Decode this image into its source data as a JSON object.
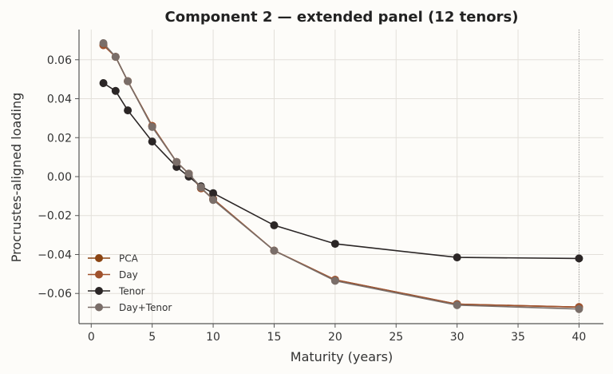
{
  "chart_data": {
    "type": "line",
    "title": "Component 2 — extended panel (12 tenors)",
    "xlabel": "Maturity (years)",
    "ylabel": "Procrustes-aligned loading",
    "xlim": [
      -1,
      42
    ],
    "ylim": [
      -0.0755,
      0.0755
    ],
    "x_ticks": [
      0,
      5,
      10,
      15,
      20,
      25,
      30,
      35,
      40
    ],
    "x_tick_labels": [
      "0",
      "5",
      "10",
      "15",
      "20",
      "25",
      "30",
      "35",
      "40"
    ],
    "y_ticks": [
      -0.06,
      -0.04,
      -0.02,
      0.0,
      0.02,
      0.04,
      0.06
    ],
    "y_tick_labels": [
      "−0.06",
      "−0.04",
      "−0.02",
      "0.00",
      "0.02",
      "0.04",
      "0.06"
    ],
    "grid": true,
    "legend_position": "lower-left",
    "reference_line_x": 40,
    "x": [
      1,
      2,
      3,
      5,
      7,
      8,
      9,
      10,
      15,
      20,
      30,
      40
    ],
    "series": [
      {
        "name": "PCA",
        "color": "#8b4513",
        "values": [
          0.0675,
          0.0615,
          0.049,
          0.026,
          0.0075,
          0.0015,
          -0.006,
          -0.0115,
          -0.038,
          -0.053,
          -0.0655,
          -0.067
        ]
      },
      {
        "name": "Day",
        "color": "#a0522d",
        "values": [
          0.0675,
          0.0615,
          0.049,
          0.026,
          0.0075,
          0.0015,
          -0.006,
          -0.0115,
          -0.038,
          -0.053,
          -0.0655,
          -0.067
        ]
      },
      {
        "name": "Tenor",
        "color": "#2b2626",
        "values": [
          0.048,
          0.044,
          0.034,
          0.018,
          0.005,
          0.0,
          -0.005,
          -0.0085,
          -0.025,
          -0.0345,
          -0.0415,
          -0.042
        ]
      },
      {
        "name": "Day+Tenor",
        "color": "#7a6e69",
        "values": [
          0.0685,
          0.0615,
          0.049,
          0.0255,
          0.0075,
          0.0015,
          -0.0055,
          -0.012,
          -0.038,
          -0.0535,
          -0.066,
          -0.068
        ]
      }
    ]
  }
}
